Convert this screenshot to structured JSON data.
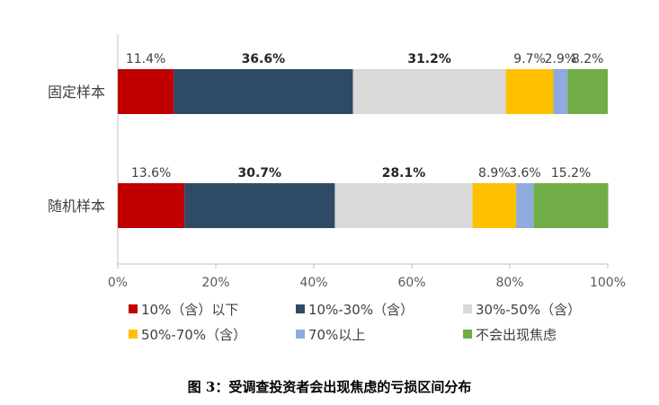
{
  "caption": "图 3：受调查投资者会出现焦虑的亏损区间分布",
  "chart_data": {
    "type": "bar",
    "orientation": "horizontal",
    "stacked": true,
    "percent_stacked": true,
    "categories": [
      "固定样本",
      "随机样本"
    ],
    "series": [
      {
        "name": "10%（含）以下",
        "color": "#c00000",
        "values": [
          11.4,
          13.6
        ],
        "labels": [
          "11.4%",
          "13.6%"
        ],
        "label_bold": false
      },
      {
        "name": "10%-30%（含）",
        "color": "#2f4a66",
        "values": [
          36.6,
          30.7
        ],
        "labels": [
          "36.6%",
          "30.7%"
        ],
        "label_bold": true
      },
      {
        "name": "30%-50%（含）",
        "color": "#d9d9d9",
        "values": [
          31.2,
          28.1
        ],
        "labels": [
          "31.2%",
          "28.1%"
        ],
        "label_bold": true
      },
      {
        "name": "50%-70%（含）",
        "color": "#ffc000",
        "values": [
          9.7,
          8.9
        ],
        "labels": [
          "9.7%",
          "8.9%"
        ],
        "label_bold": false
      },
      {
        "name": "70%以上",
        "color": "#8faadc",
        "values": [
          2.9,
          3.6
        ],
        "labels": [
          "2.9%",
          "3.6%"
        ],
        "label_bold": false
      },
      {
        "name": "不会出现焦虑",
        "color": "#70ad47",
        "values": [
          8.2,
          15.2
        ],
        "labels": [
          "8.2%",
          "15.2%"
        ],
        "label_bold": false
      }
    ],
    "xlim": [
      0,
      100
    ],
    "xticks": [
      "0%",
      "20%",
      "40%",
      "60%",
      "80%",
      "100%"
    ],
    "grid": false,
    "legend_position": "bottom"
  }
}
